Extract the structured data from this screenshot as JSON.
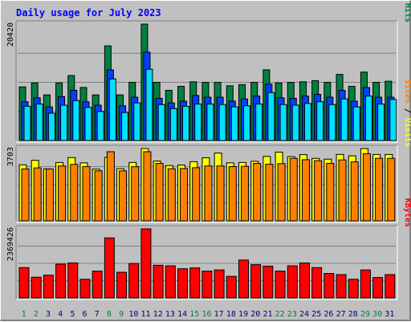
{
  "chart_data": [
    {
      "type": "bar",
      "title": "Daily usage for July 2023",
      "ytick_top": "20420",
      "legend": [
        {
          "label": "Pages",
          "color": "#00e0ff"
        },
        {
          "label": "Files",
          "color": "#0040ff"
        },
        {
          "label": "Hits",
          "color": "#008040"
        }
      ],
      "separator": " / ",
      "ylim": [
        0,
        20420
      ],
      "categories": [
        "1",
        "2",
        "3",
        "4",
        "5",
        "6",
        "7",
        "8",
        "9",
        "10",
        "11",
        "12",
        "13",
        "14",
        "15",
        "16",
        "17",
        "18",
        "19",
        "20",
        "21",
        "22",
        "23",
        "24",
        "25",
        "26",
        "27",
        "28",
        "29",
        "30",
        "31"
      ],
      "weekend_days": [
        "1",
        "2",
        "8",
        "9",
        "15",
        "16",
        "22",
        "23",
        "29",
        "30"
      ],
      "series": [
        {
          "name": "Hits",
          "color": "#008040",
          "values": [
            9400,
            10100,
            8000,
            10100,
            11400,
            9300,
            8000,
            16600,
            8000,
            10200,
            20420,
            10200,
            8800,
            9500,
            10300,
            10200,
            10200,
            9600,
            9800,
            10200,
            12400,
            10100,
            10200,
            10300,
            10500,
            10200,
            11600,
            9500,
            12000,
            10200,
            10400
          ]
        },
        {
          "name": "Files",
          "color": "#0040ff",
          "values": [
            6800,
            7500,
            5900,
            7700,
            8800,
            6800,
            6200,
            12400,
            6100,
            7600,
            15500,
            7400,
            6600,
            6900,
            7900,
            7600,
            7600,
            6900,
            7300,
            7800,
            9900,
            7500,
            7400,
            7800,
            8100,
            7600,
            8800,
            6900,
            9300,
            7600,
            7600
          ]
        },
        {
          "name": "Pages",
          "color": "#00e0ff",
          "values": [
            6000,
            6400,
            4800,
            6200,
            7000,
            5800,
            5100,
            10800,
            4900,
            6600,
            12500,
            6300,
            5600,
            6000,
            6400,
            6400,
            6300,
            5900,
            6100,
            6400,
            8400,
            6300,
            6200,
            6500,
            6800,
            6300,
            7300,
            5900,
            7800,
            6400,
            7200
          ]
        }
      ]
    },
    {
      "type": "bar",
      "ytick_top": "3703",
      "legend": [
        {
          "label": "Sites",
          "color": "#ff8000"
        },
        {
          "label": "Visits",
          "color": "#ffff00"
        }
      ],
      "separator": " / ",
      "ylim": [
        0,
        3703
      ],
      "categories": [
        "1",
        "2",
        "3",
        "4",
        "5",
        "6",
        "7",
        "8",
        "9",
        "10",
        "11",
        "12",
        "13",
        "14",
        "15",
        "16",
        "17",
        "18",
        "19",
        "20",
        "21",
        "22",
        "23",
        "24",
        "25",
        "26",
        "27",
        "28",
        "29",
        "30",
        "31"
      ],
      "series": [
        {
          "name": "Visits",
          "color": "#ffff00",
          "values": [
            2870,
            3100,
            2660,
            2990,
            3240,
            2970,
            2650,
            3250,
            2670,
            2990,
            3703,
            3060,
            2830,
            2860,
            3030,
            3230,
            3470,
            2970,
            2990,
            3050,
            3300,
            3520,
            3290,
            3390,
            3200,
            3160,
            3400,
            3330,
            3703,
            3400,
            3400
          ]
        },
        {
          "name": "Sites",
          "color": "#ff8000",
          "values": [
            2660,
            2710,
            2660,
            2810,
            2890,
            2780,
            2560,
            3540,
            2560,
            2770,
            3540,
            2940,
            2670,
            2680,
            2720,
            2810,
            2810,
            2780,
            2790,
            2940,
            2900,
            2930,
            3200,
            3130,
            3080,
            2940,
            3120,
            3020,
            3440,
            3200,
            3200
          ]
        }
      ]
    },
    {
      "type": "bar",
      "ytick_top": "2369426",
      "legend": [
        {
          "label": "KBytes",
          "color": "#ff0000"
        }
      ],
      "ylim": [
        0,
        2369426
      ],
      "categories": [
        "1",
        "2",
        "3",
        "4",
        "5",
        "6",
        "7",
        "8",
        "9",
        "10",
        "11",
        "12",
        "13",
        "14",
        "15",
        "16",
        "17",
        "18",
        "19",
        "20",
        "21",
        "22",
        "23",
        "24",
        "25",
        "26",
        "27",
        "28",
        "29",
        "30",
        "31"
      ],
      "series": [
        {
          "name": "KBytes",
          "color": "#ff0000",
          "values": [
            1040000,
            710000,
            780000,
            1160000,
            1200000,
            640000,
            920000,
            2060000,
            880000,
            1180000,
            2369426,
            1120000,
            1100000,
            1000000,
            1030000,
            920000,
            960000,
            740000,
            1300000,
            1140000,
            1090000,
            920000,
            1100000,
            1200000,
            1040000,
            840000,
            800000,
            640000,
            960000,
            700000,
            800000
          ]
        }
      ]
    }
  ]
}
